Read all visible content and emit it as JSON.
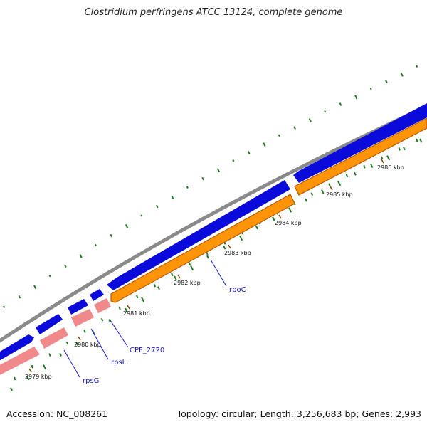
{
  "title": "Clostridium perfringens ATCC 13124, complete genome",
  "footer": {
    "accession": "Accession: NC_008261",
    "topology": "Topology: circular; Length: 3,256,683 bp; Genes: 2,993"
  },
  "colors": {
    "backbone": "#8a8a8a",
    "forward_cds": "#0a0adb",
    "reverse_cds_orange": "#ff9408",
    "reverse_cds_pink": "#f08a8a",
    "tick": "#1f7a1f",
    "gene_label": "#1a1acc"
  },
  "kbp_ticks": [
    {
      "label": "2979 kbp"
    },
    {
      "label": "2980 kbp"
    },
    {
      "label": "2981 kbp"
    },
    {
      "label": "2982 kbp"
    },
    {
      "label": "2983 kbp"
    },
    {
      "label": "2984 kbp"
    },
    {
      "label": "2985 kbp"
    },
    {
      "label": "2986 kbp"
    }
  ],
  "genes": [
    {
      "name": "rpsG"
    },
    {
      "name": "rpsL"
    },
    {
      "name": "CPF_2720"
    },
    {
      "name": "rpoC"
    }
  ]
}
